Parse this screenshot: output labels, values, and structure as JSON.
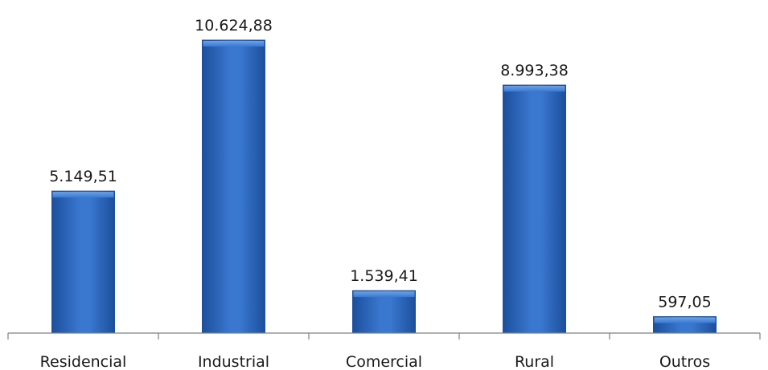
{
  "chart_data": {
    "type": "bar",
    "categories": [
      "Residencial",
      "Industrial",
      "Comercial",
      "Rural",
      "Outros"
    ],
    "values": [
      5149.51,
      10624.88,
      1539.41,
      8993.38,
      597.05
    ],
    "value_labels": [
      "5.149,51",
      "10.624,88",
      "1.539,41",
      "8.993,38",
      "597,05"
    ],
    "title": "",
    "xlabel": "",
    "ylabel": "",
    "ylim": [
      0,
      10624.88
    ],
    "grid": false,
    "legend": "none",
    "colors": {
      "bar_dark": "#1c4f9c",
      "bar_mid": "#3a78d0",
      "bar_light": "#6aa2ea",
      "axis": "#808080"
    }
  }
}
